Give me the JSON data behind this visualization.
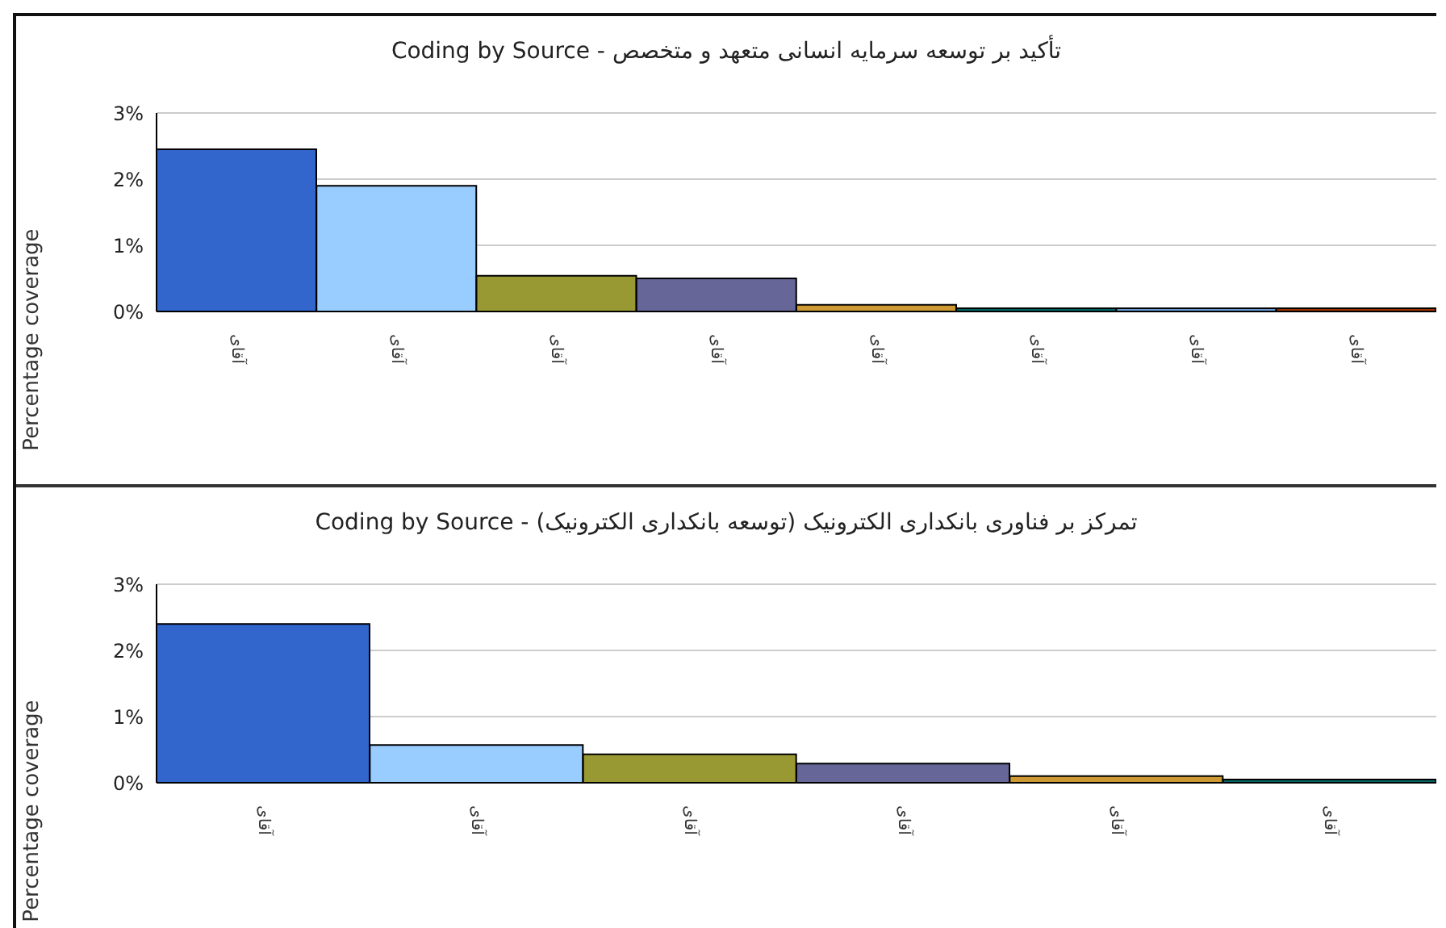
{
  "chart_data": [
    {
      "type": "bar",
      "title": "Coding by Source - تأکید بر توسعه سرمایه انسانی متعهد و متخصص",
      "ylabel": "Percentage coverage",
      "categories": [
        "آقای",
        "آقای",
        "آقای",
        "آقای",
        "آقای",
        "آقای",
        "آقای",
        "آقای"
      ],
      "values": [
        2.45,
        1.9,
        0.54,
        0.5,
        0.1,
        0.05,
        0.05,
        0.05
      ],
      "colors": [
        "#3366cc",
        "#99ccff",
        "#999933",
        "#666699",
        "#cc9933",
        "#006666",
        "#6699cc",
        "#993300"
      ],
      "ylim": [
        0,
        3
      ],
      "yticks": [
        {
          "value": 0,
          "label": "0%"
        },
        {
          "value": 1,
          "label": "1%"
        },
        {
          "value": 2,
          "label": "2%"
        },
        {
          "value": 3,
          "label": "3%"
        }
      ],
      "grid": "y",
      "legend": false
    },
    {
      "type": "bar",
      "title": "Coding by Source - (تمرکز بر فناوری بانکداری الکترونیک (توسعه بانکداری الکترونیک",
      "ylabel": "Percentage coverage",
      "categories": [
        "آقای",
        "آقای",
        "آقای",
        "آقای",
        "آقای",
        "آقای"
      ],
      "values": [
        2.4,
        0.57,
        0.43,
        0.29,
        0.1,
        0.05
      ],
      "colors": [
        "#3366cc",
        "#99ccff",
        "#999933",
        "#666699",
        "#cc9933",
        "#006666"
      ],
      "ylim": [
        0,
        3
      ],
      "yticks": [
        {
          "value": 0,
          "label": "0%"
        },
        {
          "value": 1,
          "label": "1%"
        },
        {
          "value": 2,
          "label": "2%"
        },
        {
          "value": 3,
          "label": "3%"
        }
      ],
      "grid": "y",
      "legend": false
    }
  ]
}
